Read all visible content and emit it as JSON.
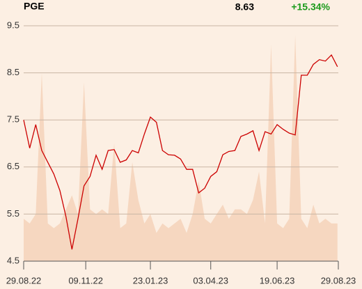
{
  "chart_data": {
    "type": "line",
    "title": "PGE",
    "last_price": 8.63,
    "change": {
      "value": 15.34,
      "label": "+15.34%"
    },
    "change_color": "#1a9a1a",
    "x": [
      "29.08.22",
      "05.09.22",
      "12.09.22",
      "19.09.22",
      "26.09.22",
      "03.10.22",
      "10.10.22",
      "17.10.22",
      "24.10.22",
      "31.10.22",
      "07.11.22",
      "14.11.22",
      "21.11.22",
      "28.11.22",
      "05.12.22",
      "12.12.22",
      "19.12.22",
      "26.12.22",
      "02.01.23",
      "09.01.23",
      "16.01.23",
      "23.01.23",
      "30.01.23",
      "06.02.23",
      "13.02.23",
      "20.02.23",
      "27.02.23",
      "06.03.23",
      "13.03.23",
      "20.03.23",
      "27.03.23",
      "03.04.23",
      "10.04.23",
      "17.04.23",
      "24.04.23",
      "01.05.23",
      "08.05.23",
      "15.05.23",
      "22.05.23",
      "29.05.23",
      "05.06.23",
      "12.06.23",
      "19.06.23",
      "26.06.23",
      "03.07.23",
      "10.07.23",
      "17.07.23",
      "24.07.23",
      "31.07.23",
      "07.08.23",
      "14.08.23",
      "21.08.23",
      "28.08.23"
    ],
    "series": [
      {
        "type": "area",
        "color": "#f6d7c0",
        "values": [
          5.4,
          5.3,
          5.5,
          8.5,
          5.3,
          5.2,
          5.3,
          5.6,
          5.9,
          5.5,
          8.3,
          5.6,
          5.5,
          5.6,
          5.5,
          7.0,
          5.2,
          5.3,
          6.6,
          5.8,
          5.3,
          5.5,
          5.1,
          5.3,
          5.2,
          5.3,
          5.4,
          5.1,
          5.5,
          6.2,
          5.4,
          5.3,
          5.5,
          5.7,
          5.4,
          5.6,
          5.6,
          5.5,
          5.8,
          6.4,
          5.3,
          9.1,
          5.3,
          5.2,
          5.4,
          9.3,
          5.4,
          5.2,
          5.7,
          5.3,
          5.4,
          5.3,
          5.3
        ]
      },
      {
        "type": "line",
        "color": "#cc0000",
        "values": [
          7.5,
          6.9,
          7.4,
          6.85,
          6.6,
          6.35,
          6.0,
          5.45,
          4.75,
          5.4,
          6.1,
          6.3,
          6.75,
          6.45,
          6.85,
          6.87,
          6.6,
          6.65,
          6.85,
          6.8,
          7.2,
          7.56,
          7.45,
          6.85,
          6.76,
          6.75,
          6.67,
          6.45,
          6.45,
          5.95,
          6.05,
          6.3,
          6.4,
          6.76,
          6.83,
          6.85,
          7.15,
          7.2,
          7.27,
          6.85,
          7.25,
          7.2,
          7.4,
          7.3,
          7.22,
          7.18,
          8.45,
          8.45,
          8.68,
          8.78,
          8.75,
          8.88,
          8.63
        ]
      }
    ],
    "xlim": [
      "29.08.22",
      "29.08.23"
    ],
    "xticks": [
      "29.08.22",
      "09.11.22",
      "23.01.23",
      "03.04.23",
      "19.06.23",
      "29.08.23"
    ],
    "ylim": [
      4.5,
      9.5
    ],
    "yticks": [
      4.5,
      5.5,
      6.5,
      7.5,
      8.5,
      9.5
    ],
    "grid": true
  }
}
